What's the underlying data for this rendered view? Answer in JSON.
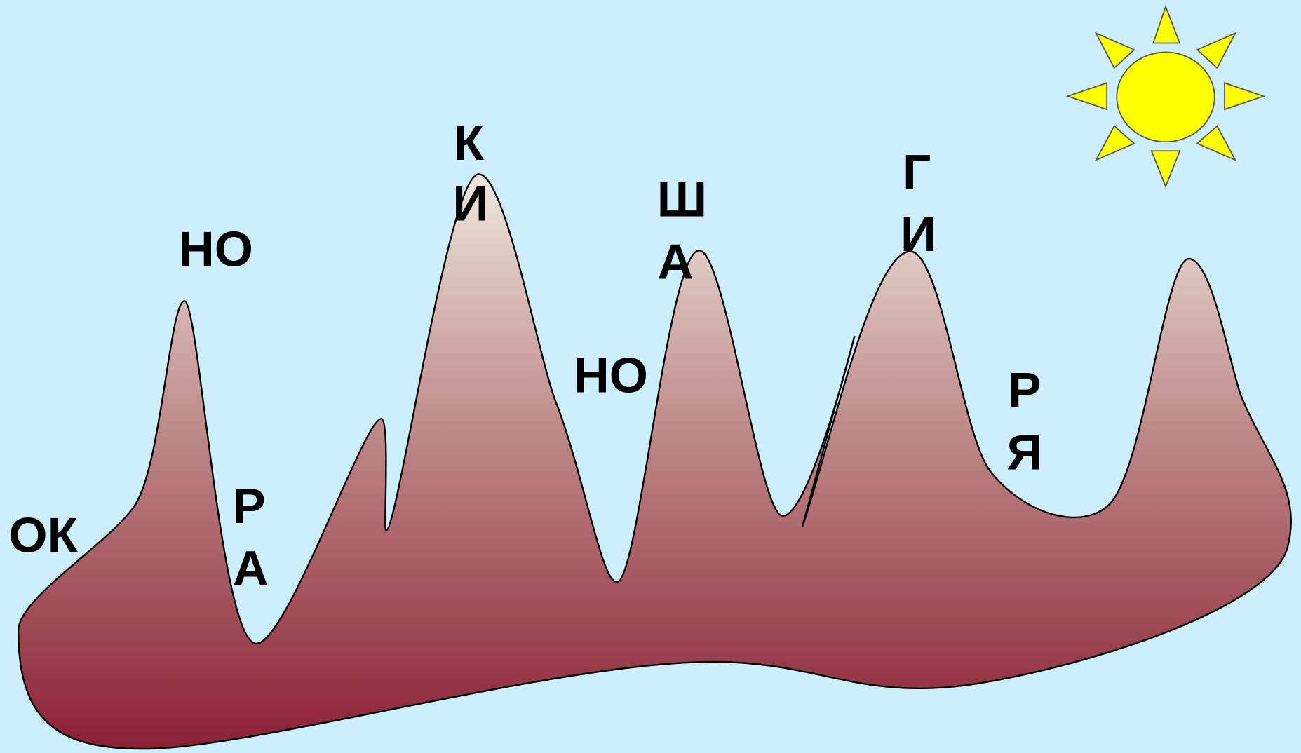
{
  "labels": [
    "ОК",
    "НО",
    "Р",
    "А",
    "К",
    "И",
    "НО",
    "Ш",
    "А",
    "Г",
    "И",
    "Р",
    "Я"
  ]
}
